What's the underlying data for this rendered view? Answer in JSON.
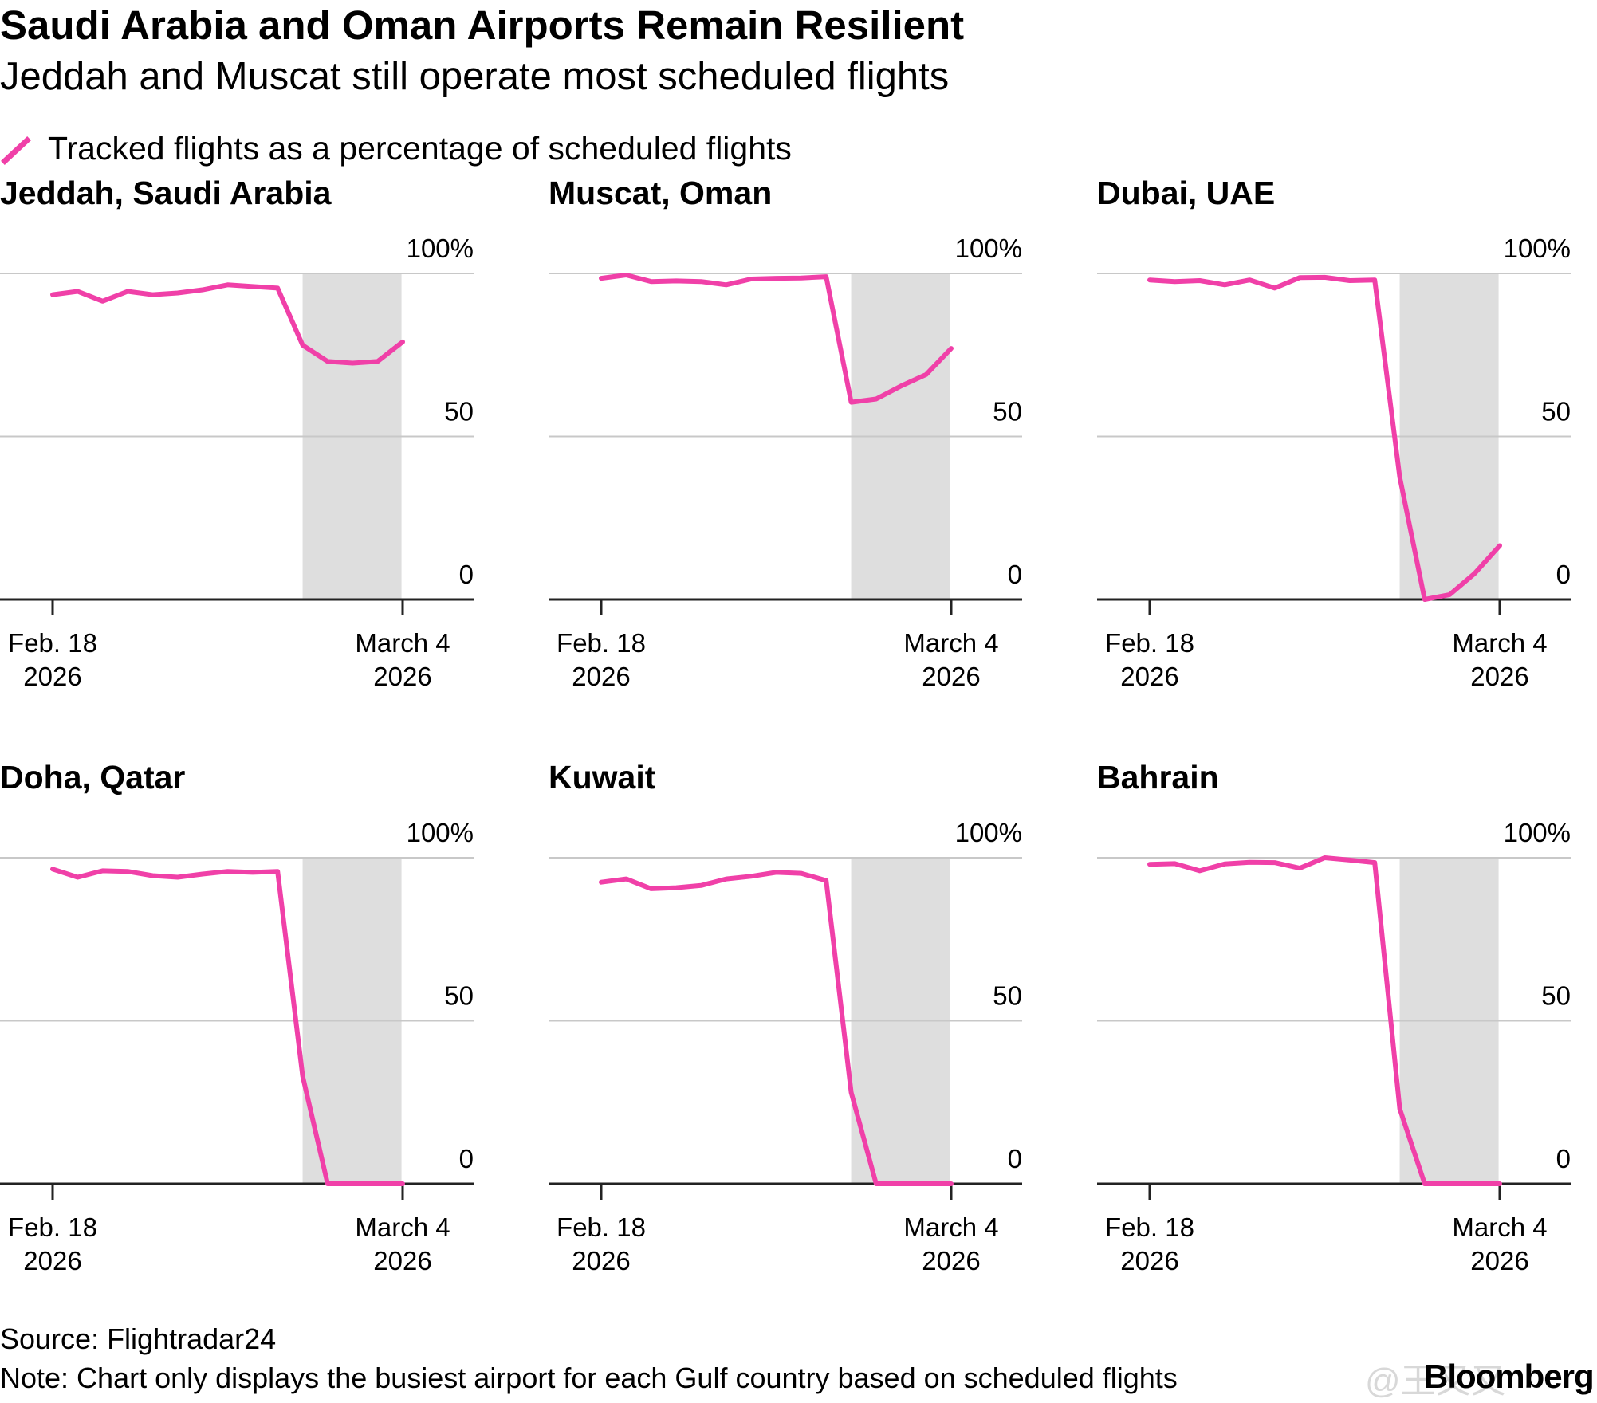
{
  "header": {
    "title": "Saudi Arabia and Oman Airports Remain Resilient",
    "subtitle": "Jeddah and Muscat still operate most scheduled flights"
  },
  "legend": {
    "label": "Tracked flights as a percentage of scheduled flights",
    "icon": "pink-slash-line-icon"
  },
  "colors": {
    "line": "#f040a8",
    "shade": "#dedede",
    "grid": "#c8c8c8",
    "axis": "#222222",
    "text": "#000000"
  },
  "chart_data": [
    {
      "type": "line",
      "title": "Jeddah, Saudi Arabia",
      "x": [
        0,
        1,
        2,
        3,
        4,
        5,
        6,
        7,
        8,
        9,
        10,
        11,
        12,
        13,
        14
      ],
      "values": [
        93.5,
        94.5,
        91.5,
        94.5,
        93.5,
        94,
        95,
        96.5,
        96,
        95.5,
        78,
        73,
        72.5,
        73,
        79
      ],
      "ylim": [
        0,
        100
      ],
      "yticks": [
        {
          "value": 100,
          "label": "100%"
        },
        {
          "value": 50,
          "label": "50"
        },
        {
          "value": 0,
          "label": "0"
        }
      ],
      "xticks": [
        {
          "x": 0,
          "line1": "Feb. 18",
          "line2": "2026"
        },
        {
          "x": 14,
          "line1": "March 4",
          "line2": "2026"
        }
      ],
      "shaded_range": [
        10,
        14
      ]
    },
    {
      "type": "line",
      "title": "Muscat, Oman",
      "x": [
        0,
        1,
        2,
        3,
        4,
        5,
        6,
        7,
        8,
        9,
        10,
        11,
        12,
        13,
        14
      ],
      "values": [
        98.5,
        99.5,
        97.5,
        97.7,
        97.5,
        96.5,
        98.3,
        98.5,
        98.6,
        99,
        60.5,
        61.5,
        65.5,
        69,
        77
      ],
      "ylim": [
        0,
        100
      ],
      "yticks": [
        {
          "value": 100,
          "label": "100%"
        },
        {
          "value": 50,
          "label": "50"
        },
        {
          "value": 0,
          "label": "0"
        }
      ],
      "xticks": [
        {
          "x": 0,
          "line1": "Feb. 18",
          "line2": "2026"
        },
        {
          "x": 14,
          "line1": "March 4",
          "line2": "2026"
        }
      ],
      "shaded_range": [
        10,
        14
      ]
    },
    {
      "type": "line",
      "title": "Dubai, UAE",
      "x": [
        0,
        1,
        2,
        3,
        4,
        5,
        6,
        7,
        8,
        9,
        10,
        11,
        12,
        13,
        14
      ],
      "values": [
        98,
        97.5,
        97.8,
        96.5,
        98,
        95.5,
        98.7,
        98.8,
        97.8,
        98,
        37.5,
        0,
        1.5,
        8,
        16.5
      ],
      "ylim": [
        0,
        100
      ],
      "yticks": [
        {
          "value": 100,
          "label": "100%"
        },
        {
          "value": 50,
          "label": "50"
        },
        {
          "value": 0,
          "label": "0"
        }
      ],
      "xticks": [
        {
          "x": 0,
          "line1": "Feb. 18",
          "line2": "2026"
        },
        {
          "x": 14,
          "line1": "March 4",
          "line2": "2026"
        }
      ],
      "shaded_range": [
        10,
        14
      ]
    },
    {
      "type": "line",
      "title": "Doha, Qatar",
      "x": [
        0,
        1,
        2,
        3,
        4,
        5,
        6,
        7,
        8,
        9,
        10,
        11,
        12,
        13,
        14
      ],
      "values": [
        96.5,
        94,
        96,
        95.8,
        94.5,
        94,
        95,
        95.8,
        95.5,
        95.8,
        33,
        0,
        0,
        0,
        0
      ],
      "ylim": [
        0,
        100
      ],
      "yticks": [
        {
          "value": 100,
          "label": "100%"
        },
        {
          "value": 50,
          "label": "50"
        },
        {
          "value": 0,
          "label": "0"
        }
      ],
      "xticks": [
        {
          "x": 0,
          "line1": "Feb. 18",
          "line2": "2026"
        },
        {
          "x": 14,
          "line1": "March 4",
          "line2": "2026"
        }
      ],
      "shaded_range": [
        10,
        14
      ]
    },
    {
      "type": "line",
      "title": "Kuwait",
      "x": [
        0,
        1,
        2,
        3,
        4,
        5,
        6,
        7,
        8,
        9,
        10,
        11,
        12,
        13,
        14
      ],
      "values": [
        92.5,
        93.5,
        90.5,
        90.8,
        91.5,
        93.5,
        94.3,
        95.5,
        95.2,
        93,
        28,
        0,
        0,
        0,
        0
      ],
      "ylim": [
        0,
        100
      ],
      "yticks": [
        {
          "value": 100,
          "label": "100%"
        },
        {
          "value": 50,
          "label": "50"
        },
        {
          "value": 0,
          "label": "0"
        }
      ],
      "xticks": [
        {
          "x": 0,
          "line1": "Feb. 18",
          "line2": "2026"
        },
        {
          "x": 14,
          "line1": "March 4",
          "line2": "2026"
        }
      ],
      "shaded_range": [
        10,
        14
      ]
    },
    {
      "type": "line",
      "title": "Bahrain",
      "x": [
        0,
        1,
        2,
        3,
        4,
        5,
        6,
        7,
        8,
        9,
        10,
        11,
        12,
        13,
        14
      ],
      "values": [
        98,
        98.2,
        96,
        98.1,
        98.6,
        98.5,
        96.8,
        100,
        99.3,
        98.5,
        23,
        0,
        0,
        0,
        0
      ],
      "ylim": [
        0,
        100
      ],
      "yticks": [
        {
          "value": 100,
          "label": "100%"
        },
        {
          "value": 50,
          "label": "50"
        },
        {
          "value": 0,
          "label": "0"
        }
      ],
      "xticks": [
        {
          "x": 0,
          "line1": "Feb. 18",
          "line2": "2026"
        },
        {
          "x": 14,
          "line1": "March 4",
          "line2": "2026"
        }
      ],
      "shaded_range": [
        10,
        14
      ]
    }
  ],
  "footer": {
    "source": "Source: Flightradar24",
    "note": "Note: Chart only displays the busiest airport for each Gulf country based on scheduled flights",
    "watermark": "@王又又",
    "brand": "Bloomberg"
  }
}
